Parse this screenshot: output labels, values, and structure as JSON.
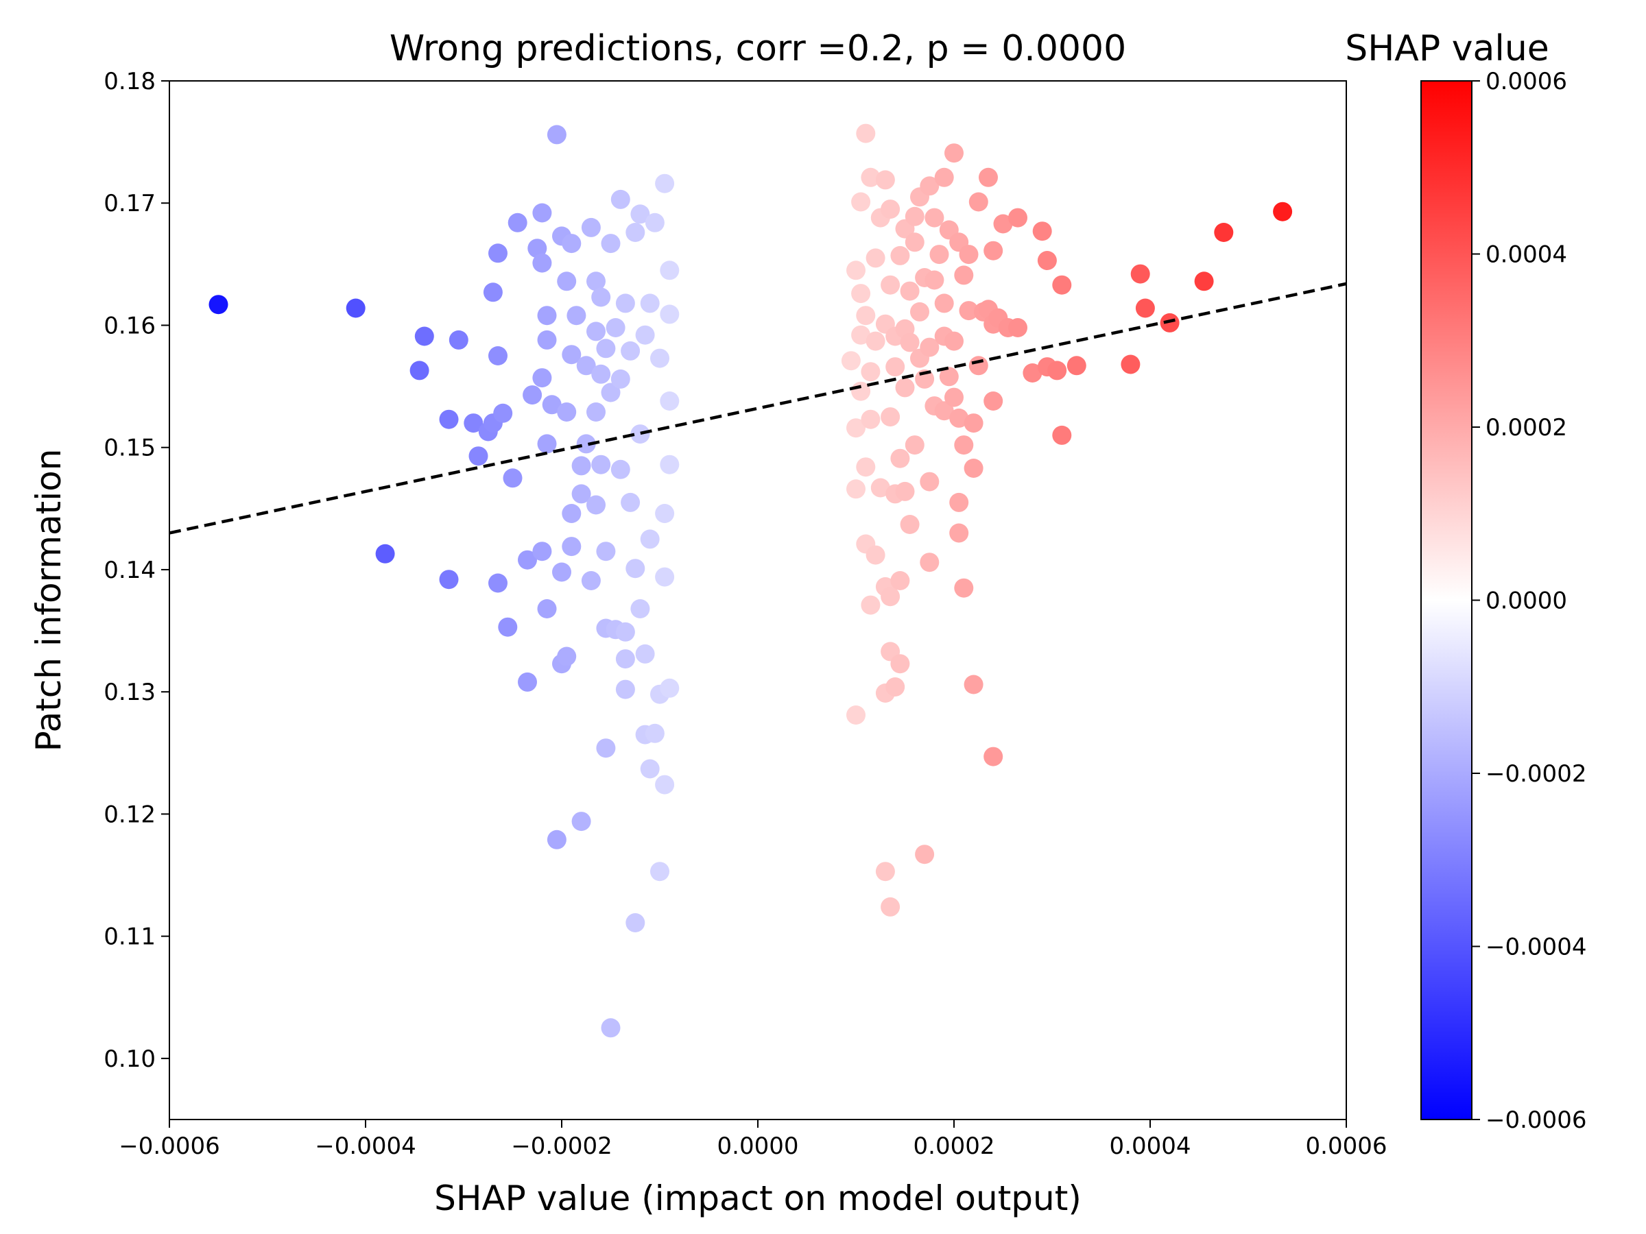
{
  "chart_data": {
    "type": "scatter",
    "title": "Wrong predictions, corr =0.2, p = 0.0000",
    "xlabel": "SHAP value (impact on model output)",
    "ylabel": "Patch information",
    "xlim": [
      -0.0006,
      0.0006
    ],
    "ylim": [
      0.095,
      0.18
    ],
    "x_ticks": [
      -0.0006,
      -0.0004,
      -0.0002,
      0.0,
      0.0002,
      0.0004,
      0.0006
    ],
    "x_tick_labels": [
      "−0.0006",
      "−0.0004",
      "−0.0002",
      "0.0000",
      "0.0002",
      "0.0004",
      "0.0006"
    ],
    "y_ticks": [
      0.1,
      0.11,
      0.12,
      0.13,
      0.14,
      0.15,
      0.16,
      0.17,
      0.18
    ],
    "y_tick_labels": [
      "0.10",
      "0.11",
      "0.12",
      "0.13",
      "0.14",
      "0.15",
      "0.16",
      "0.17",
      "0.18"
    ],
    "grid": false,
    "colormap": "bwr",
    "colors": {
      "negative": "#0000ff",
      "zero": "#ffffff",
      "positive": "#ff0000",
      "trend_line": "#000000"
    },
    "trend_line": {
      "style": "dashed",
      "x": [
        -0.0006,
        0.0006
      ],
      "y": [
        0.143,
        0.1634
      ]
    },
    "colorbar": {
      "label": "SHAP value",
      "range": [
        -0.0006,
        0.0006
      ],
      "ticks": [
        -0.0006,
        -0.0004,
        -0.0002,
        0.0,
        0.0002,
        0.0004,
        0.0006
      ],
      "tick_labels": [
        "−0.0006",
        "−0.0004",
        "−0.0002",
        "0.0000",
        "0.0002",
        "0.0004",
        "0.0006"
      ]
    },
    "points": [
      [
        -0.00055,
        0.1617
      ],
      [
        -0.00041,
        0.1614
      ],
      [
        -0.00038,
        0.1413
      ],
      [
        -0.00034,
        0.1591
      ],
      [
        -0.000345,
        0.1563
      ],
      [
        -0.000315,
        0.1523
      ],
      [
        -0.000305,
        0.1588
      ],
      [
        -0.000315,
        0.1392
      ],
      [
        -0.00029,
        0.152
      ],
      [
        -0.000285,
        0.1493
      ],
      [
        -0.000275,
        0.1513
      ],
      [
        -0.00027,
        0.1627
      ],
      [
        -0.00027,
        0.152
      ],
      [
        -0.000265,
        0.1659
      ],
      [
        -0.000265,
        0.1389
      ],
      [
        -0.000265,
        0.1575
      ],
      [
        -0.00026,
        0.1528
      ],
      [
        -0.000255,
        0.1353
      ],
      [
        -0.00025,
        0.1475
      ],
      [
        -0.000245,
        0.1684
      ],
      [
        -0.000235,
        0.1308
      ],
      [
        -0.000235,
        0.1408
      ],
      [
        -0.00023,
        0.1543
      ],
      [
        -0.000225,
        0.1663
      ],
      [
        -0.00022,
        0.1415
      ],
      [
        -0.00022,
        0.1692
      ],
      [
        -0.00022,
        0.1651
      ],
      [
        -0.00022,
        0.1557
      ],
      [
        -0.000215,
        0.1608
      ],
      [
        -0.000215,
        0.1503
      ],
      [
        -0.000215,
        0.1368
      ],
      [
        -0.000215,
        0.1588
      ],
      [
        -0.00021,
        0.1535
      ],
      [
        -0.000205,
        0.1179
      ],
      [
        -0.000205,
        0.1756
      ],
      [
        -0.0002,
        0.1673
      ],
      [
        -0.0002,
        0.1398
      ],
      [
        -0.0002,
        0.1323
      ],
      [
        -0.000195,
        0.1529
      ],
      [
        -0.000195,
        0.1329
      ],
      [
        -0.000195,
        0.1636
      ],
      [
        -0.00019,
        0.1446
      ],
      [
        -0.00019,
        0.1419
      ],
      [
        -0.00019,
        0.1667
      ],
      [
        -0.00019,
        0.1576
      ],
      [
        -0.000185,
        0.1608
      ],
      [
        -0.00018,
        0.1194
      ],
      [
        -0.00018,
        0.1485
      ],
      [
        -0.00018,
        0.1462
      ],
      [
        -0.000175,
        0.1503
      ],
      [
        -0.000175,
        0.1567
      ],
      [
        -0.00017,
        0.168
      ],
      [
        -0.00017,
        0.1391
      ],
      [
        -0.000165,
        0.1595
      ],
      [
        -0.000165,
        0.1636
      ],
      [
        -0.000165,
        0.1453
      ],
      [
        -0.000165,
        0.1529
      ],
      [
        -0.00016,
        0.1623
      ],
      [
        -0.00016,
        0.156
      ],
      [
        -0.00016,
        0.1486
      ],
      [
        -0.000155,
        0.1352
      ],
      [
        -0.000155,
        0.1254
      ],
      [
        -0.000155,
        0.1581
      ],
      [
        -0.000155,
        0.1415
      ],
      [
        -0.00015,
        0.1025
      ],
      [
        -0.00015,
        0.1667
      ],
      [
        -0.00015,
        0.1545
      ],
      [
        -0.000145,
        0.1351
      ],
      [
        -0.000145,
        0.1598
      ],
      [
        -0.00014,
        0.1703
      ],
      [
        -0.00014,
        0.1482
      ],
      [
        -0.00014,
        0.1556
      ],
      [
        -0.000135,
        0.1349
      ],
      [
        -0.000135,
        0.1618
      ],
      [
        -0.000135,
        0.1302
      ],
      [
        -0.000135,
        0.1327
      ],
      [
        -0.00013,
        0.1455
      ],
      [
        -0.00013,
        0.1579
      ],
      [
        -0.000125,
        0.1401
      ],
      [
        -0.000125,
        0.1111
      ],
      [
        -0.000125,
        0.1676
      ],
      [
        -0.00012,
        0.1511
      ],
      [
        -0.00012,
        0.1691
      ],
      [
        -0.00012,
        0.1368
      ],
      [
        -0.000115,
        0.1265
      ],
      [
        -0.000115,
        0.1592
      ],
      [
        -0.000115,
        0.1331
      ],
      [
        -0.00011,
        0.1237
      ],
      [
        -0.00011,
        0.1425
      ],
      [
        -0.00011,
        0.1618
      ],
      [
        -0.000105,
        0.1684
      ],
      [
        -0.000105,
        0.1266
      ],
      [
        -0.0001,
        0.1153
      ],
      [
        -0.0001,
        0.1298
      ],
      [
        -0.0001,
        0.1573
      ],
      [
        -9.5e-05,
        0.1224
      ],
      [
        -9.5e-05,
        0.1716
      ],
      [
        -9.5e-05,
        0.1446
      ],
      [
        -9.5e-05,
        0.1394
      ],
      [
        -9e-05,
        0.1303
      ],
      [
        -9e-05,
        0.1538
      ],
      [
        -9e-05,
        0.1645
      ],
      [
        -9e-05,
        0.1486
      ],
      [
        -9e-05,
        0.1609
      ],
      [
        9.5e-05,
        0.1571
      ],
      [
        0.0001,
        0.1645
      ],
      [
        0.0001,
        0.1516
      ],
      [
        0.0001,
        0.1466
      ],
      [
        0.0001,
        0.1281
      ],
      [
        0.000105,
        0.1592
      ],
      [
        0.000105,
        0.1701
      ],
      [
        0.000105,
        0.1546
      ],
      [
        0.000105,
        0.1626
      ],
      [
        0.00011,
        0.1608
      ],
      [
        0.00011,
        0.1757
      ],
      [
        0.00011,
        0.1484
      ],
      [
        0.00011,
        0.1421
      ],
      [
        0.000115,
        0.1721
      ],
      [
        0.000115,
        0.1523
      ],
      [
        0.000115,
        0.1371
      ],
      [
        0.000115,
        0.1562
      ],
      [
        0.00012,
        0.1412
      ],
      [
        0.00012,
        0.1655
      ],
      [
        0.00012,
        0.1587
      ],
      [
        0.000125,
        0.1467
      ],
      [
        0.000125,
        0.1688
      ],
      [
        0.00013,
        0.1153
      ],
      [
        0.00013,
        0.1299
      ],
      [
        0.00013,
        0.1386
      ],
      [
        0.00013,
        0.1601
      ],
      [
        0.00013,
        0.1719
      ],
      [
        0.000135,
        0.1124
      ],
      [
        0.000135,
        0.1333
      ],
      [
        0.000135,
        0.1378
      ],
      [
        0.000135,
        0.1525
      ],
      [
        0.000135,
        0.1695
      ],
      [
        0.000135,
        0.1633
      ],
      [
        0.00014,
        0.1304
      ],
      [
        0.00014,
        0.1462
      ],
      [
        0.00014,
        0.1566
      ],
      [
        0.00014,
        0.1591
      ],
      [
        0.000145,
        0.1391
      ],
      [
        0.000145,
        0.1491
      ],
      [
        0.000145,
        0.1657
      ],
      [
        0.000145,
        0.1323
      ],
      [
        0.00015,
        0.1464
      ],
      [
        0.00015,
        0.1597
      ],
      [
        0.00015,
        0.1679
      ],
      [
        0.00015,
        0.1549
      ],
      [
        0.000155,
        0.1437
      ],
      [
        0.000155,
        0.1586
      ],
      [
        0.000155,
        0.1628
      ],
      [
        0.00016,
        0.1502
      ],
      [
        0.00016,
        0.1668
      ],
      [
        0.00016,
        0.1689
      ],
      [
        0.000165,
        0.1573
      ],
      [
        0.000165,
        0.1705
      ],
      [
        0.000165,
        0.1611
      ],
      [
        0.00017,
        0.1167
      ],
      [
        0.00017,
        0.1639
      ],
      [
        0.00017,
        0.1556
      ],
      [
        0.000175,
        0.1406
      ],
      [
        0.000175,
        0.1472
      ],
      [
        0.000175,
        0.1714
      ],
      [
        0.000175,
        0.1582
      ],
      [
        0.00018,
        0.1688
      ],
      [
        0.00018,
        0.1637
      ],
      [
        0.00018,
        0.1534
      ],
      [
        0.000185,
        0.1658
      ],
      [
        0.00019,
        0.1721
      ],
      [
        0.00019,
        0.153
      ],
      [
        0.00019,
        0.1618
      ],
      [
        0.00019,
        0.1591
      ],
      [
        0.000195,
        0.1678
      ],
      [
        0.000195,
        0.1558
      ],
      [
        0.0002,
        0.1741
      ],
      [
        0.0002,
        0.1587
      ],
      [
        0.0002,
        0.1541
      ],
      [
        0.000205,
        0.1524
      ],
      [
        0.000205,
        0.1455
      ],
      [
        0.000205,
        0.143
      ],
      [
        0.000205,
        0.1668
      ],
      [
        0.00021,
        0.1385
      ],
      [
        0.00021,
        0.1641
      ],
      [
        0.00021,
        0.1502
      ],
      [
        0.000215,
        0.1658
      ],
      [
        0.000215,
        0.1612
      ],
      [
        0.00022,
        0.1306
      ],
      [
        0.00022,
        0.1483
      ],
      [
        0.00022,
        0.152
      ],
      [
        0.000225,
        0.1567
      ],
      [
        0.000225,
        0.1701
      ],
      [
        0.00023,
        0.1611
      ],
      [
        0.000235,
        0.1721
      ],
      [
        0.000235,
        0.1613
      ],
      [
        0.00024,
        0.1661
      ],
      [
        0.00024,
        0.1601
      ],
      [
        0.00024,
        0.1538
      ],
      [
        0.00024,
        0.1247
      ],
      [
        0.000245,
        0.1606
      ],
      [
        0.00025,
        0.1683
      ],
      [
        0.000255,
        0.1598
      ],
      [
        0.000265,
        0.1598
      ],
      [
        0.000265,
        0.1688
      ],
      [
        0.00028,
        0.1561
      ],
      [
        0.00029,
        0.1677
      ],
      [
        0.000295,
        0.1653
      ],
      [
        0.000295,
        0.1566
      ],
      [
        0.000305,
        0.1563
      ],
      [
        0.00031,
        0.151
      ],
      [
        0.00031,
        0.1633
      ],
      [
        0.000325,
        0.1567
      ],
      [
        0.00038,
        0.1568
      ],
      [
        0.00039,
        0.1642
      ],
      [
        0.000395,
        0.1614
      ],
      [
        0.00042,
        0.1602
      ],
      [
        0.000455,
        0.1636
      ],
      [
        0.000475,
        0.1676
      ],
      [
        0.000535,
        0.1693
      ]
    ]
  }
}
